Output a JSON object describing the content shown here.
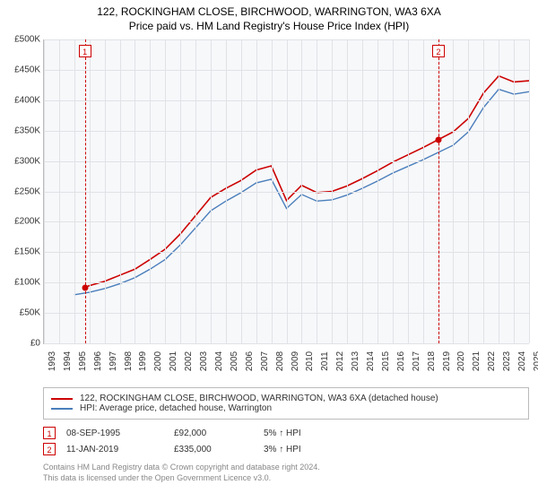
{
  "title": "122, ROCKINGHAM CLOSE, BIRCHWOOD, WARRINGTON, WA3 6XA",
  "subtitle": "Price paid vs. HM Land Registry's House Price Index (HPI)",
  "chart": {
    "type": "line",
    "background_color": "#f7f8fa",
    "grid_color": "#e0e2e6",
    "axis_color": "#bbbbbb",
    "y": {
      "min": 0,
      "max": 500000,
      "step": 50000,
      "labels": [
        "£0",
        "£50K",
        "£100K",
        "£150K",
        "£200K",
        "£250K",
        "£300K",
        "£350K",
        "£400K",
        "£450K",
        "£500K"
      ]
    },
    "x": {
      "min": 1993,
      "max": 2025,
      "step": 1,
      "labels": [
        "1993",
        "1994",
        "1995",
        "1996",
        "1997",
        "1998",
        "1999",
        "2000",
        "2001",
        "2002",
        "2003",
        "2004",
        "2005",
        "2006",
        "2007",
        "2008",
        "2009",
        "2010",
        "2011",
        "2012",
        "2013",
        "2014",
        "2015",
        "2016",
        "2017",
        "2018",
        "2019",
        "2020",
        "2021",
        "2022",
        "2023",
        "2024",
        "2025"
      ]
    },
    "series": [
      {
        "name": "122, ROCKINGHAM CLOSE, BIRCHWOOD, WARRINGTON, WA3 6XA (detached house)",
        "color": "#cc0000",
        "line_width": 1.6,
        "data": [
          [
            1995.7,
            92000
          ],
          [
            1996,
            95000
          ],
          [
            1997,
            102000
          ],
          [
            1998,
            112000
          ],
          [
            1999,
            122000
          ],
          [
            2000,
            138000
          ],
          [
            2001,
            155000
          ],
          [
            2002,
            180000
          ],
          [
            2003,
            210000
          ],
          [
            2004,
            240000
          ],
          [
            2005,
            255000
          ],
          [
            2006,
            268000
          ],
          [
            2007,
            285000
          ],
          [
            2008,
            292000
          ],
          [
            2009,
            235000
          ],
          [
            2010,
            260000
          ],
          [
            2011,
            248000
          ],
          [
            2012,
            250000
          ],
          [
            2013,
            259000
          ],
          [
            2014,
            271000
          ],
          [
            2015,
            284000
          ],
          [
            2016,
            298000
          ],
          [
            2017,
            310000
          ],
          [
            2018,
            322000
          ],
          [
            2019,
            335000
          ],
          [
            2020,
            348000
          ],
          [
            2021,
            370000
          ],
          [
            2022,
            412000
          ],
          [
            2023,
            440000
          ],
          [
            2024,
            430000
          ],
          [
            2025,
            432000
          ]
        ]
      },
      {
        "name": "HPI: Average price, detached house, Warrington",
        "color": "#4a7ebb",
        "line_width": 1.4,
        "data": [
          [
            1995,
            80000
          ],
          [
            1996,
            84000
          ],
          [
            1997,
            90000
          ],
          [
            1998,
            98000
          ],
          [
            1999,
            108000
          ],
          [
            2000,
            122000
          ],
          [
            2001,
            138000
          ],
          [
            2002,
            162000
          ],
          [
            2003,
            190000
          ],
          [
            2004,
            218000
          ],
          [
            2005,
            234000
          ],
          [
            2006,
            248000
          ],
          [
            2007,
            264000
          ],
          [
            2008,
            270000
          ],
          [
            2009,
            222000
          ],
          [
            2010,
            245000
          ],
          [
            2011,
            234000
          ],
          [
            2012,
            236000
          ],
          [
            2013,
            244000
          ],
          [
            2014,
            255000
          ],
          [
            2015,
            267000
          ],
          [
            2016,
            280000
          ],
          [
            2017,
            291000
          ],
          [
            2018,
            302000
          ],
          [
            2019,
            314000
          ],
          [
            2020,
            326000
          ],
          [
            2021,
            348000
          ],
          [
            2022,
            388000
          ],
          [
            2023,
            418000
          ],
          [
            2024,
            410000
          ],
          [
            2025,
            414000
          ]
        ]
      }
    ],
    "markers": [
      {
        "id": "1",
        "x": 1995.7,
        "y": 92000
      },
      {
        "id": "2",
        "x": 2019.03,
        "y": 335000
      }
    ]
  },
  "legend": {
    "label_series_a": "122, ROCKINGHAM CLOSE, BIRCHWOOD, WARRINGTON, WA3 6XA (detached house)",
    "label_series_b": "HPI: Average price, detached house, Warrington"
  },
  "events": [
    {
      "id": "1",
      "date": "08-SEP-1995",
      "price": "£92,000",
      "delta": "5% ↑ HPI"
    },
    {
      "id": "2",
      "date": "11-JAN-2019",
      "price": "£335,000",
      "delta": "3% ↑ HPI"
    }
  ],
  "footer_line1": "Contains HM Land Registry data © Crown copyright and database right 2024.",
  "footer_line2": "This data is licensed under the Open Government Licence v3.0.",
  "label_fontsize": 10,
  "title_fontsize": 12
}
